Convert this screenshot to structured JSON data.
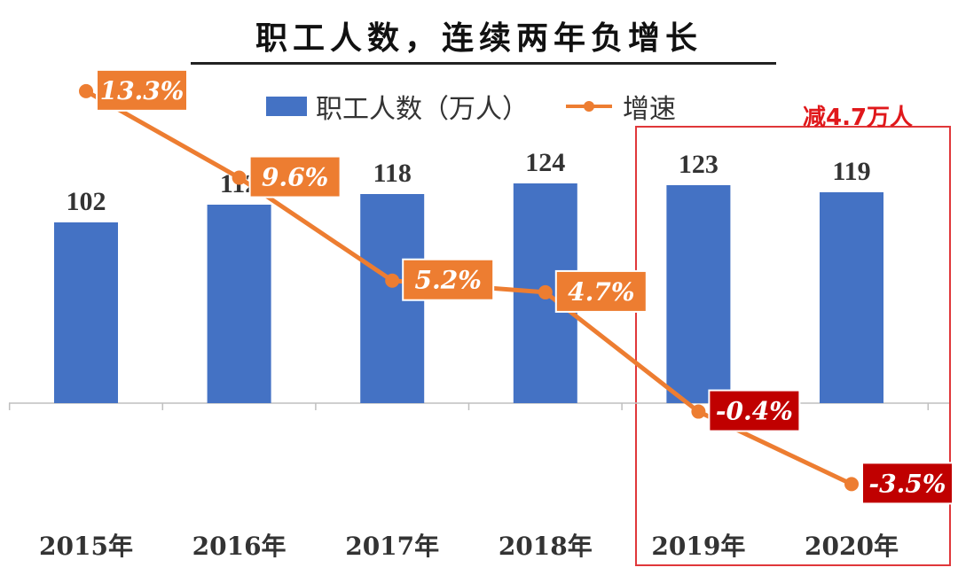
{
  "title": "职工人数，连续两年负增长",
  "legend": {
    "bar_label": "职工人数（万人）",
    "line_label": "增速"
  },
  "callout": "减4.7万人",
  "colors": {
    "bar": "#4472c4",
    "line": "#ed7d31",
    "label_positive": "#ed7d31",
    "label_negative": "#c00000",
    "highlight": "#e0373a"
  },
  "chart_data": {
    "type": "bar",
    "categories": [
      "2015年",
      "2016年",
      "2017年",
      "2018年",
      "2019年",
      "2020年"
    ],
    "series": [
      {
        "name": "职工人数（万人）",
        "type": "bar",
        "values": [
          102,
          112,
          118,
          124,
          123,
          119
        ],
        "labels": [
          "102",
          "112",
          "118",
          "124",
          "123",
          "119"
        ]
      },
      {
        "name": "增速",
        "type": "line",
        "values": [
          13.3,
          9.6,
          5.2,
          4.7,
          -0.4,
          -3.5
        ],
        "labels": [
          "13.3%",
          "9.6%",
          "5.2%",
          "4.7%",
          "-0.4%",
          "-3.5%"
        ]
      }
    ],
    "highlighted_categories": [
      "2019年",
      "2020年"
    ],
    "grid": false
  }
}
